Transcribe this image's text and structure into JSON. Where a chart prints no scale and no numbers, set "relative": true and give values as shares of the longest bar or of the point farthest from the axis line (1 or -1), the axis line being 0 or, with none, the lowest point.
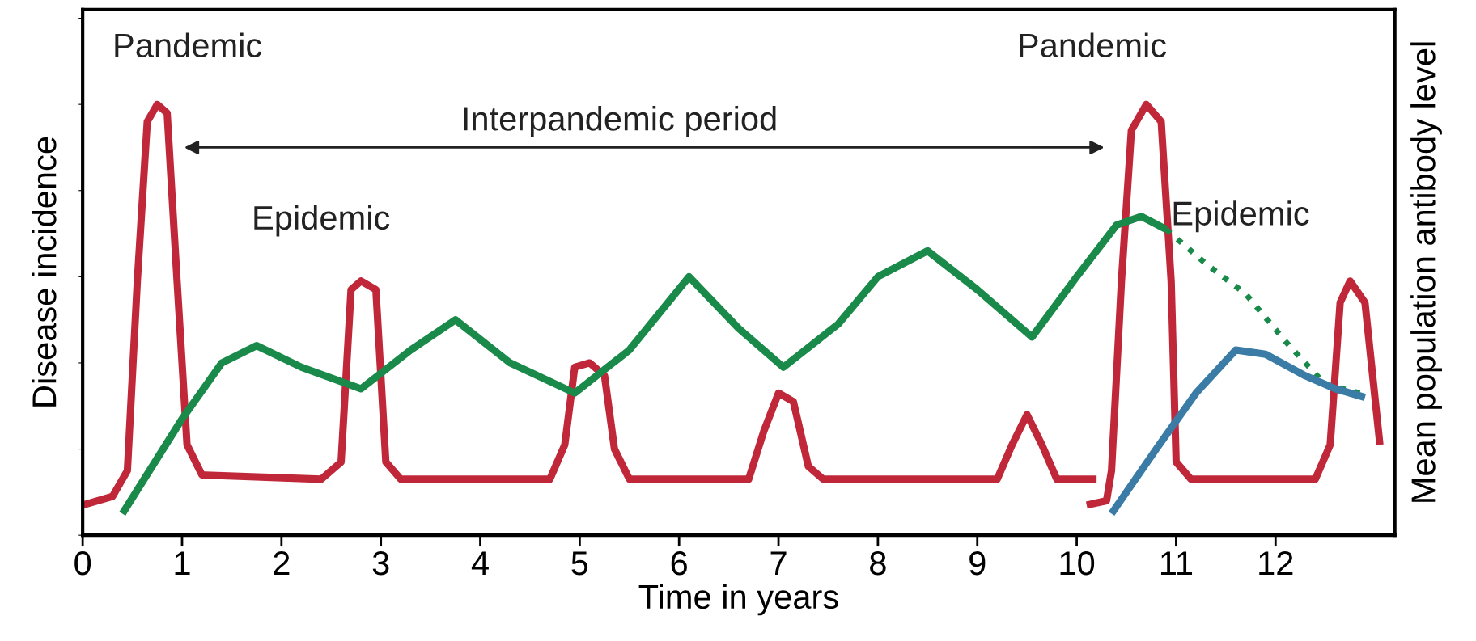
{
  "chart_data": {
    "type": "line",
    "relative": true,
    "xlabel": "Time in years",
    "ylabel": "Disease incidence",
    "y2label": "Mean population antibody level",
    "xlim": [
      0,
      13.2
    ],
    "xticks": [
      0,
      1,
      2,
      3,
      4,
      5,
      6,
      7,
      8,
      9,
      10,
      11,
      12
    ],
    "grid": false,
    "legend": false,
    "tick_labels": "x",
    "annotations": [
      "Pandemic",
      "Interpandemic period",
      "Epidemic",
      "Pandemic",
      "Epidemic"
    ],
    "series": [
      {
        "color": "#c0283a",
        "line_style": "solid",
        "x": [
          0,
          0.3,
          0.45,
          0.55,
          0.65,
          0.75,
          0.85,
          0.95,
          1.05,
          1.2,
          2.4,
          2.6,
          2.7,
          2.8,
          2.95,
          3.05,
          3.2,
          4.7,
          4.85,
          4.95,
          5.1,
          5.25,
          5.35,
          5.5,
          6.7,
          6.85,
          7.0,
          7.15,
          7.3,
          7.45,
          9.2,
          9.35,
          9.5,
          9.65,
          9.8,
          10.2
        ],
        "values": [
          0.07,
          0.09,
          0.15,
          0.59,
          0.96,
          1.0,
          0.98,
          0.59,
          0.21,
          0.14,
          0.13,
          0.17,
          0.57,
          0.59,
          0.57,
          0.17,
          0.13,
          0.13,
          0.21,
          0.39,
          0.4,
          0.37,
          0.2,
          0.13,
          0.13,
          0.24,
          0.33,
          0.31,
          0.16,
          0.13,
          0.13,
          0.21,
          0.28,
          0.21,
          0.13,
          0.13
        ]
      },
      {
        "color": "#c0283a",
        "line_style": "solid",
        "x": [
          10.1,
          10.3,
          10.35,
          10.45,
          10.55,
          10.7,
          10.85,
          10.95,
          11.0,
          11.15,
          12.4,
          12.55,
          12.65,
          12.75,
          12.9,
          13.05
        ],
        "values": [
          0.07,
          0.08,
          0.15,
          0.59,
          0.94,
          1.0,
          0.96,
          0.59,
          0.17,
          0.13,
          0.13,
          0.21,
          0.54,
          0.59,
          0.54,
          0.21
        ]
      },
      {
        "color": "#1a8a4a",
        "line_style": "solid",
        "x": [
          0.4,
          1.0,
          1.4,
          1.75,
          2.2,
          2.8,
          3.3,
          3.75,
          4.3,
          4.95,
          5.5,
          6.1,
          6.6,
          7.05,
          7.6,
          8.0,
          8.5,
          9.0,
          9.55,
          10.0,
          10.4,
          10.65,
          10.9
        ],
        "values": [
          0.05,
          0.27,
          0.4,
          0.44,
          0.39,
          0.34,
          0.43,
          0.5,
          0.4,
          0.33,
          0.43,
          0.6,
          0.48,
          0.39,
          0.49,
          0.6,
          0.66,
          0.57,
          0.46,
          0.6,
          0.72,
          0.74,
          0.71
        ]
      },
      {
        "color": "#1a8a4a",
        "line_style": "dotted",
        "x": [
          10.9,
          11.3,
          11.7,
          12.1,
          12.5,
          12.85
        ],
        "values": [
          0.71,
          0.63,
          0.56,
          0.45,
          0.35,
          0.33
        ]
      },
      {
        "color": "#3a7ca5",
        "line_style": "solid",
        "x": [
          10.35,
          10.8,
          11.2,
          11.6,
          11.9,
          12.3,
          12.6,
          12.9
        ],
        "values": [
          0.05,
          0.2,
          0.33,
          0.43,
          0.42,
          0.37,
          0.34,
          0.32
        ]
      }
    ]
  }
}
